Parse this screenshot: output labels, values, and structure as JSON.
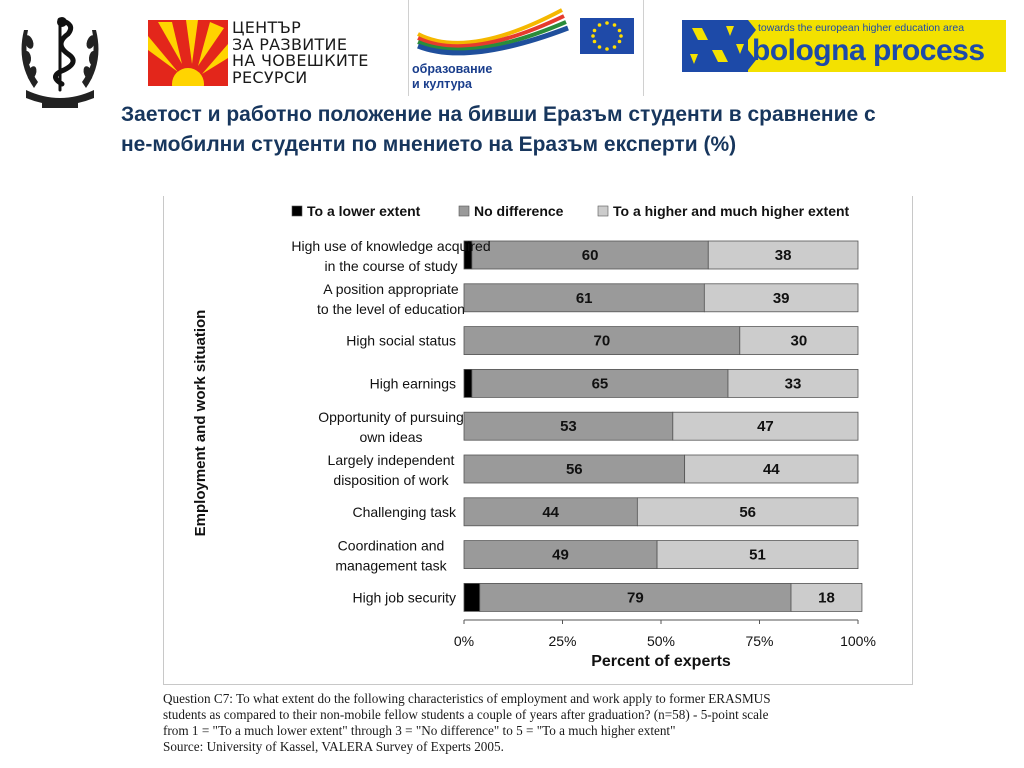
{
  "header": {
    "hrdc_logo_lines": [
      "ЦЕНТЪР",
      "ЗА РАЗВИТИЕ",
      "НА ЧОВЕШКИТЕ",
      "РЕСУРСИ"
    ],
    "edu_logo_lines": [
      "образование",
      "и култура"
    ],
    "bologna_tagline": "towards the european higher education area",
    "bologna_name": "bologna process"
  },
  "slide": {
    "title": "Заетост и работно положение на бивши Еразъм студенти в сравнение с не-мобилни студенти по мнението на Еразъм експерти (%)"
  },
  "caption": {
    "lines": [
      "Question C7: To what extent do the following characteristics of employment and work apply to former ERASMUS",
      "students as compared to their non-mobile fellow students a couple of years after graduation? (n=58) - 5-point scale",
      "from 1 = \"To a much lower extent\" through 3 = \"No difference\" to 5 = \"To a much higher extent\"",
      "Source: University of Kassel, VALERA Survey of Experts 2005."
    ]
  },
  "colors": {
    "lower": "#000000",
    "nodiff": "#9a9a9a",
    "higher": "#cccccc",
    "title": "#17365d"
  },
  "chart_data": {
    "type": "bar",
    "orientation": "horizontal",
    "stacked": true,
    "categories": [
      [
        "High use of knowledge acquired",
        "in the course of study"
      ],
      [
        "A position appropriate",
        "to the level of education"
      ],
      [
        "High social status"
      ],
      [
        "High earnings"
      ],
      [
        "Opportunity of pursuing",
        "own ideas"
      ],
      [
        "Largely independent",
        "disposition of work"
      ],
      [
        "Challenging task"
      ],
      [
        "Coordination and",
        "management task"
      ],
      [
        "High job security"
      ]
    ],
    "series": [
      {
        "name": "To a lower extent",
        "values": [
          2,
          0,
          0,
          2,
          0,
          0,
          0,
          0,
          4
        ]
      },
      {
        "name": "No difference",
        "values": [
          60,
          61,
          70,
          65,
          53,
          56,
          44,
          49,
          79
        ]
      },
      {
        "name": "To a higher and much higher extent",
        "values": [
          38,
          39,
          30,
          33,
          47,
          44,
          56,
          51,
          18
        ]
      }
    ],
    "data_labels": {
      "No difference": [
        "60",
        "61",
        "70",
        "65",
        "53",
        "56",
        "44",
        "49",
        "79"
      ],
      "To a higher and much higher extent": [
        "38",
        "39",
        "30",
        "33",
        "47",
        "44",
        "56",
        "51",
        "18"
      ]
    },
    "xlabel": "Percent of experts",
    "ylabel": "Employment and work situation",
    "xlim": [
      0,
      100
    ],
    "xticks": [
      "0%",
      "25%",
      "50%",
      "75%",
      "100%"
    ],
    "legend_position": "top",
    "grid": false
  }
}
